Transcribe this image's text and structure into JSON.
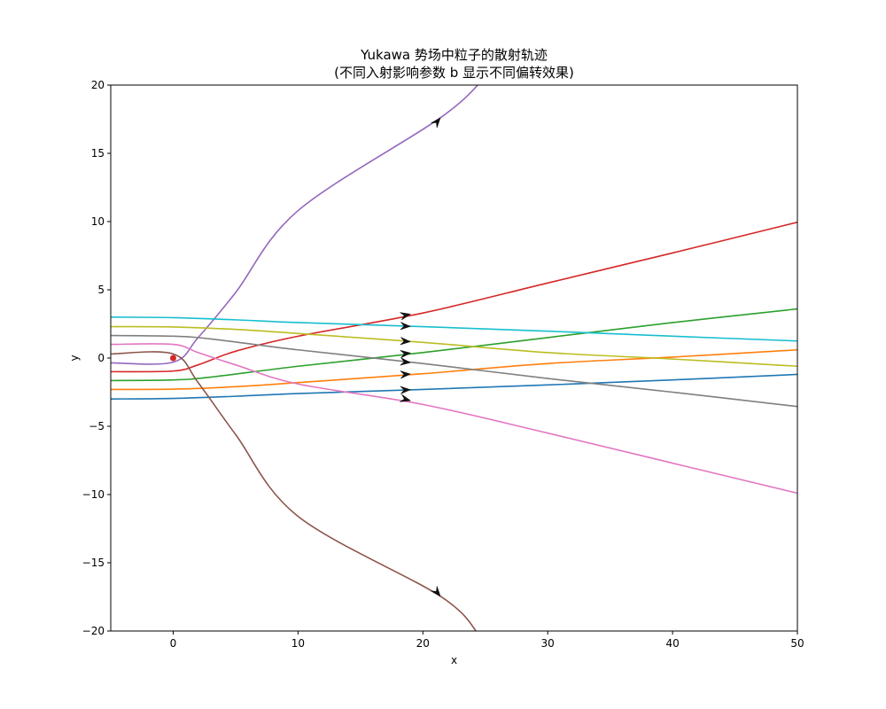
{
  "chart_data": {
    "type": "line",
    "title": [
      "Yukawa 势场中粒子的散射轨迹",
      "(不同入射影响参数 b 显示不同偏转效果)"
    ],
    "xlabel": "x",
    "ylabel": "y",
    "xlim": [
      -5,
      50
    ],
    "ylim": [
      -20,
      20
    ],
    "xticks": [
      0,
      10,
      20,
      30,
      40,
      50
    ],
    "yticks": [
      20,
      15,
      10,
      5,
      0,
      -5,
      -10,
      -15,
      -20
    ],
    "ytick_labels": [
      "20",
      "15",
      "10",
      "5",
      "0",
      "−5",
      "−10",
      "−15",
      "−20"
    ],
    "grid": false,
    "center": {
      "x": 0,
      "y": 0,
      "color": "#d62728"
    },
    "series": [
      {
        "color": "#1f77b4",
        "points": [
          [
            -5,
            -3
          ],
          [
            0,
            -2.96
          ],
          [
            5,
            -2.8
          ],
          [
            10,
            -2.6
          ],
          [
            20,
            -2.3
          ],
          [
            30,
            -1.97
          ],
          [
            40,
            -1.6
          ],
          [
            50,
            -1.2
          ]
        ],
        "arrow": [
          [
            18.5,
            -2.34
          ],
          [
            19,
            -2.32
          ]
        ]
      },
      {
        "color": "#ff7f0e",
        "points": [
          [
            -5,
            -2.3
          ],
          [
            0,
            -2.28
          ],
          [
            5,
            -2.1
          ],
          [
            10,
            -1.8
          ],
          [
            20,
            -1.15
          ],
          [
            30,
            -0.4
          ],
          [
            40,
            0.07
          ],
          [
            50,
            0.6
          ]
        ],
        "arrow": [
          [
            18.5,
            -1.2
          ],
          [
            19,
            -1.17
          ]
        ]
      },
      {
        "color": "#2ca02c",
        "points": [
          [
            -5,
            -1.65
          ],
          [
            0,
            -1.6
          ],
          [
            3,
            -1.4
          ],
          [
            10,
            -0.6
          ],
          [
            20,
            0.4
          ],
          [
            30,
            1.5
          ],
          [
            40,
            2.6
          ],
          [
            50,
            3.6
          ]
        ],
        "arrow": [
          [
            18.5,
            0.32
          ],
          [
            19,
            0.37
          ]
        ]
      },
      {
        "color": "#d62728",
        "points": [
          [
            -5,
            -1
          ],
          [
            0,
            -0.95
          ],
          [
            2,
            -0.5
          ],
          [
            5,
            0.5
          ],
          [
            10,
            1.6
          ],
          [
            20,
            3.3
          ],
          [
            30,
            5.5
          ],
          [
            40,
            7.7
          ],
          [
            50,
            9.95
          ]
        ],
        "arrow": [
          [
            18.5,
            3.12
          ],
          [
            19,
            3.22
          ]
        ]
      },
      {
        "color": "#9467bd",
        "points": [
          [
            -5,
            -0.35
          ],
          [
            0,
            -0.3
          ],
          [
            2,
            1.5
          ],
          [
            5,
            4.8
          ],
          [
            10,
            10.8
          ],
          [
            21.4,
            17.6
          ],
          [
            25,
            20.6
          ]
        ],
        "arrow": [
          [
            20.9,
            17.05
          ],
          [
            21.4,
            17.6
          ]
        ]
      },
      {
        "color": "#8c564b",
        "points": [
          [
            -5,
            0.3
          ],
          [
            0,
            0.3
          ],
          [
            2,
            -1.8
          ],
          [
            5,
            -5.6
          ],
          [
            10,
            -11.6
          ],
          [
            21.4,
            -17.45
          ],
          [
            24.5,
            -20.3
          ]
        ],
        "arrow": [
          [
            20.9,
            -16.9
          ],
          [
            21.4,
            -17.45
          ]
        ]
      },
      {
        "color": "#e377c2",
        "points": [
          [
            -5,
            1
          ],
          [
            0,
            1
          ],
          [
            2,
            0.4
          ],
          [
            5,
            -0.5
          ],
          [
            10,
            -1.9
          ],
          [
            20,
            -3.4
          ],
          [
            30,
            -5.5
          ],
          [
            40,
            -7.7
          ],
          [
            50,
            -9.9
          ]
        ],
        "arrow": [
          [
            18.5,
            -3.0
          ],
          [
            19,
            -3.12
          ]
        ]
      },
      {
        "color": "#7f7f7f",
        "points": [
          [
            -5,
            1.65
          ],
          [
            0,
            1.6
          ],
          [
            3,
            1.4
          ],
          [
            10,
            0.6
          ],
          [
            20,
            -0.4
          ],
          [
            30,
            -1.5
          ],
          [
            40,
            -2.5
          ],
          [
            50,
            -3.55
          ]
        ],
        "arrow": [
          [
            18.5,
            -0.28
          ],
          [
            19,
            -0.33
          ]
        ]
      },
      {
        "color": "#bcbd22",
        "points": [
          [
            -5,
            2.3
          ],
          [
            0,
            2.28
          ],
          [
            5,
            2.1
          ],
          [
            10,
            1.8
          ],
          [
            20,
            1.15
          ],
          [
            30,
            0.4
          ],
          [
            40,
            -0.07
          ],
          [
            50,
            -0.6
          ]
        ],
        "arrow": [
          [
            18.5,
            1.23
          ],
          [
            19,
            1.2
          ]
        ]
      },
      {
        "color": "#17becf",
        "points": [
          [
            -5,
            3
          ],
          [
            0,
            2.96
          ],
          [
            5,
            2.8
          ],
          [
            10,
            2.6
          ],
          [
            20,
            2.3
          ],
          [
            30,
            1.97
          ],
          [
            40,
            1.6
          ],
          [
            50,
            1.25
          ]
        ],
        "arrow": [
          [
            18.5,
            2.34
          ],
          [
            19,
            2.32
          ]
        ]
      }
    ]
  }
}
